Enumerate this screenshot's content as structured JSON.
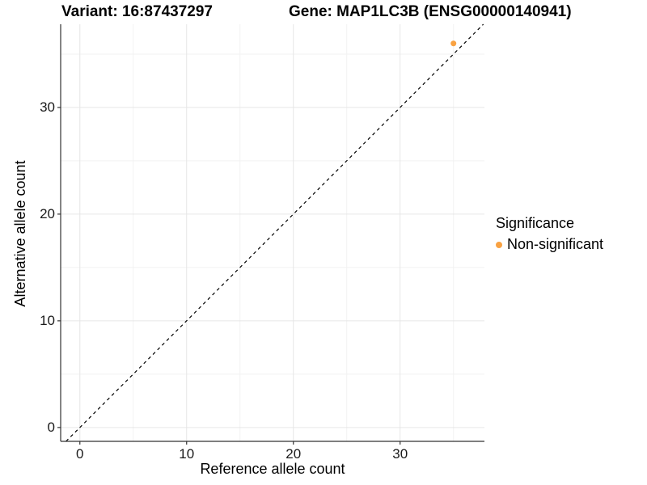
{
  "header": {
    "variant_title": "Variant: 16:87437297",
    "gene_title": "Gene: MAP1LC3B (ENSG00000140941)"
  },
  "chart_data": {
    "type": "scatter",
    "title": "Variant: 16:87437297 / Gene: MAP1LC3B (ENSG00000140941)",
    "xlabel": "Reference allele count",
    "ylabel": "Alternative allele count",
    "xlim": [
      -1.8,
      37.9
    ],
    "ylim": [
      -1.3,
      37.8
    ],
    "x_major_ticks": [
      0,
      10,
      20,
      30
    ],
    "y_major_ticks": [
      0,
      10,
      20,
      30
    ],
    "x_minor_ticks": [
      5,
      15,
      25,
      35
    ],
    "y_minor_ticks": [
      5,
      15,
      25,
      35
    ],
    "grid": "major+minor",
    "identity_line": {
      "slope": 1,
      "intercept": 0,
      "style": "dashed",
      "color": "#000000"
    },
    "series": [
      {
        "name": "Non-significant",
        "color": "#F9A242",
        "point_radius_px": 3.5,
        "points": [
          {
            "x": 35,
            "y": 36
          }
        ]
      }
    ],
    "legend": {
      "title": "Significance",
      "position": "right",
      "items": [
        {
          "label": "Non-significant",
          "color": "#F9A242"
        }
      ]
    }
  },
  "colors": {
    "background": "#ffffff",
    "axis_line": "#333333",
    "grid_major": "#e6e6e6",
    "grid_minor": "#f2f2f2",
    "tick_mark": "#333333",
    "point": "#F9A242",
    "diagonal": "#000000"
  }
}
